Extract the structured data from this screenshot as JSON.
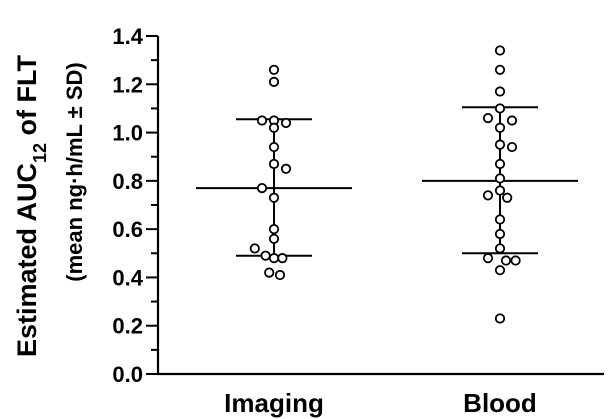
{
  "chart_data": {
    "type": "scatter",
    "ylabel_line1": "Estimated AUC",
    "ylabel_sub": "12",
    "ylabel_line1_tail": " of FLT",
    "ylabel_line2": "(mean ng·h/mL ± SD)",
    "ylim": [
      0.0,
      1.4
    ],
    "yticks": [
      "0.0",
      "0.2",
      "0.4",
      "0.6",
      "0.8",
      "1.0",
      "1.2",
      "1.4"
    ],
    "ytick_values": [
      0.0,
      0.2,
      0.4,
      0.6,
      0.8,
      1.0,
      1.2,
      1.4
    ],
    "minor_tick_step": 0.1,
    "categories": [
      "Imaging",
      "Blood"
    ],
    "groups": [
      {
        "name": "Imaging",
        "mean": 0.77,
        "sd_low": 0.49,
        "sd_high": 1.055,
        "points": [
          {
            "y": 1.26,
            "side": 0
          },
          {
            "y": 1.21,
            "side": 0
          },
          {
            "y": 1.05,
            "side": -1
          },
          {
            "y": 1.05,
            "side": 0
          },
          {
            "y": 1.04,
            "side": 1
          },
          {
            "y": 1.02,
            "side": 0
          },
          {
            "y": 0.94,
            "side": 0
          },
          {
            "y": 0.87,
            "side": 0
          },
          {
            "y": 0.85,
            "side": 1
          },
          {
            "y": 0.77,
            "side": -1
          },
          {
            "y": 0.73,
            "side": 0
          },
          {
            "y": 0.6,
            "side": 0
          },
          {
            "y": 0.56,
            "side": 0
          },
          {
            "y": 0.52,
            "side": -1.6
          },
          {
            "y": 0.49,
            "side": -0.7
          },
          {
            "y": 0.48,
            "side": 0
          },
          {
            "y": 0.48,
            "side": 0.7
          },
          {
            "y": 0.42,
            "side": -0.4
          },
          {
            "y": 0.41,
            "side": 0.5
          }
        ]
      },
      {
        "name": "Blood",
        "mean": 0.8,
        "sd_low": 0.5,
        "sd_high": 1.105,
        "points": [
          {
            "y": 1.34,
            "side": 0
          },
          {
            "y": 1.26,
            "side": 0
          },
          {
            "y": 1.17,
            "side": 0
          },
          {
            "y": 1.1,
            "side": 0
          },
          {
            "y": 1.06,
            "side": -1
          },
          {
            "y": 1.05,
            "side": 1
          },
          {
            "y": 1.02,
            "side": 0
          },
          {
            "y": 0.95,
            "side": 0
          },
          {
            "y": 0.94,
            "side": 1
          },
          {
            "y": 0.87,
            "side": 0
          },
          {
            "y": 0.81,
            "side": 0
          },
          {
            "y": 0.76,
            "side": 0
          },
          {
            "y": 0.74,
            "side": -1
          },
          {
            "y": 0.73,
            "side": 0.6
          },
          {
            "y": 0.64,
            "side": 0
          },
          {
            "y": 0.58,
            "side": 0
          },
          {
            "y": 0.52,
            "side": 0
          },
          {
            "y": 0.48,
            "side": -1
          },
          {
            "y": 0.47,
            "side": 0.5
          },
          {
            "y": 0.47,
            "side": 1.3
          },
          {
            "y": 0.43,
            "side": 0
          },
          {
            "y": 0.23,
            "side": 0
          }
        ]
      }
    ],
    "grid": false,
    "colors": {
      "marker_fill": "#ffffff",
      "marker_stroke": "#000000",
      "lines": "#000000"
    }
  }
}
